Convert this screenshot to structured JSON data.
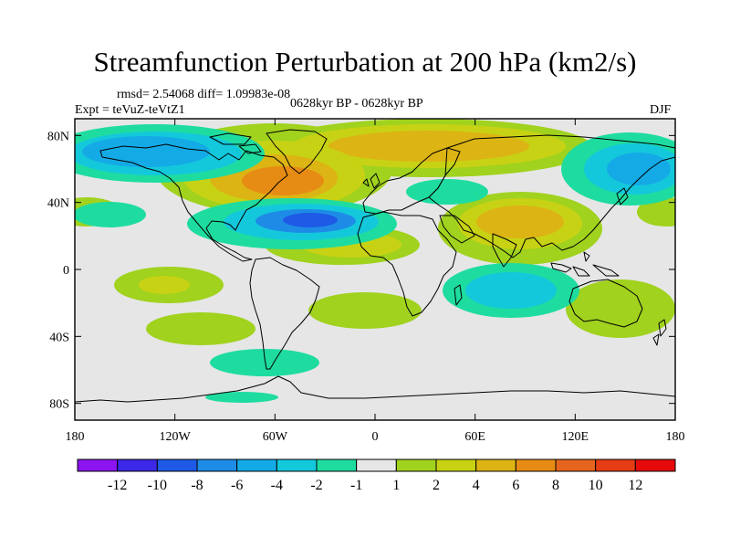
{
  "title": "Streamfunction Perturbation at 200 hPa (km2/s)",
  "stats_text": "rmsd= 2.54068  diff= 1.09983e-08",
  "experiment_text": "Expt = teVuZ-teVtZ1",
  "period_text": "0628kyr BP - 0628kyr BP",
  "season_text": "DJF",
  "map": {
    "lat_ticks": [
      "80N",
      "40N",
      "0",
      "40S",
      "80S"
    ],
    "lat_values": [
      80,
      40,
      0,
      -40,
      -80
    ],
    "lon_ticks": [
      "180",
      "120W",
      "60W",
      "0",
      "60E",
      "120E",
      "180"
    ],
    "lon_values": [
      -180,
      -120,
      -60,
      0,
      60,
      120,
      180
    ],
    "lat_range": [
      -90,
      90
    ],
    "lon_range": [
      -180,
      180
    ]
  },
  "colorbar": {
    "labels": [
      "-12",
      "-10",
      "-8",
      "-6",
      "-4",
      "-2",
      "-1",
      "1",
      "2",
      "4",
      "6",
      "8",
      "10",
      "12"
    ],
    "colors": [
      "#8c14f0",
      "#3c28e6",
      "#1e5ae6",
      "#1e8ce6",
      "#14aae6",
      "#14c8dc",
      "#1edca0",
      "#e6e6e6",
      "#a0d21e",
      "#c8d214",
      "#dcb414",
      "#e68c14",
      "#e6641e",
      "#e63c14",
      "#e60a0a"
    ]
  }
}
